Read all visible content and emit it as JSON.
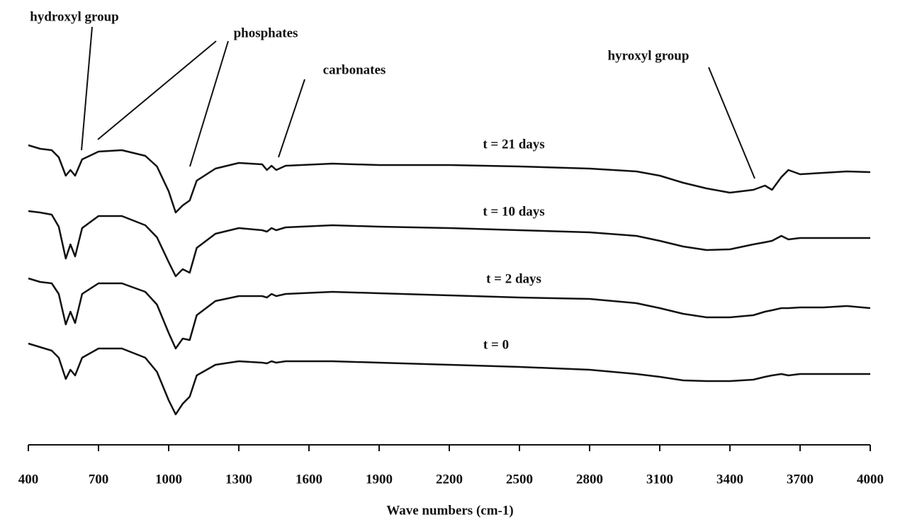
{
  "chart_data": {
    "type": "line",
    "x_label": "Wave numbers (cm-1)",
    "x": [
      400,
      450,
      500,
      530,
      560,
      580,
      600,
      630,
      700,
      800,
      900,
      950,
      1000,
      1030,
      1060,
      1090,
      1120,
      1200,
      1300,
      1400,
      1420,
      1440,
      1460,
      1500,
      1700,
      1900,
      2200,
      2500,
      2800,
      3000,
      3100,
      3200,
      3300,
      3400,
      3500,
      3550,
      3580,
      3620,
      3650,
      3700,
      3800,
      3900,
      4000
    ],
    "xlim": [
      400,
      4000
    ],
    "xticks": [
      400,
      700,
      1000,
      1300,
      1600,
      1900,
      2200,
      2500,
      2800,
      3100,
      3400,
      3700,
      4000
    ],
    "ylim": [
      0,
      628
    ],
    "series": [
      {
        "name": "t = 21 days",
        "color": "#111111",
        "values": [
          423,
          418,
          416,
          406,
          380,
          388,
          380,
          403,
          414,
          416,
          408,
          393,
          358,
          328,
          338,
          345,
          373,
          390,
          398,
          396,
          388,
          394,
          388,
          394,
          397,
          395,
          395,
          393,
          390,
          386,
          380,
          370,
          362,
          356,
          360,
          366,
          360,
          378,
          388,
          382,
          384,
          386,
          385
        ]
      },
      {
        "name": "t = 10 days",
        "color": "#111111",
        "values": [
          330,
          328,
          325,
          308,
          263,
          283,
          266,
          306,
          323,
          323,
          310,
          293,
          258,
          238,
          248,
          243,
          278,
          298,
          306,
          303,
          301,
          306,
          303,
          307,
          310,
          308,
          306,
          303,
          300,
          295,
          288,
          280,
          275,
          276,
          283,
          286,
          288,
          295,
          290,
          292,
          292,
          292,
          292
        ]
      },
      {
        "name": "t = 2 days",
        "color": "#111111",
        "values": [
          235,
          230,
          228,
          213,
          170,
          188,
          172,
          213,
          228,
          228,
          216,
          198,
          158,
          136,
          150,
          148,
          183,
          203,
          210,
          210,
          208,
          213,
          210,
          213,
          216,
          214,
          211,
          208,
          206,
          200,
          193,
          185,
          180,
          180,
          183,
          188,
          190,
          193,
          193,
          194,
          194,
          196,
          193
        ]
      },
      {
        "name": "t = 0",
        "color": "#111111",
        "values": [
          143,
          138,
          133,
          123,
          93,
          106,
          98,
          123,
          136,
          136,
          123,
          103,
          63,
          43,
          58,
          68,
          98,
          113,
          118,
          116,
          115,
          118,
          116,
          118,
          118,
          116,
          113,
          110,
          106,
          100,
          96,
          91,
          90,
          90,
          92,
          96,
          98,
          100,
          98,
          100,
          100,
          100,
          100
        ]
      }
    ],
    "annotations": [
      "hydroxyl group",
      "phosphates",
      "carbonates",
      "hyroxyl group"
    ]
  }
}
